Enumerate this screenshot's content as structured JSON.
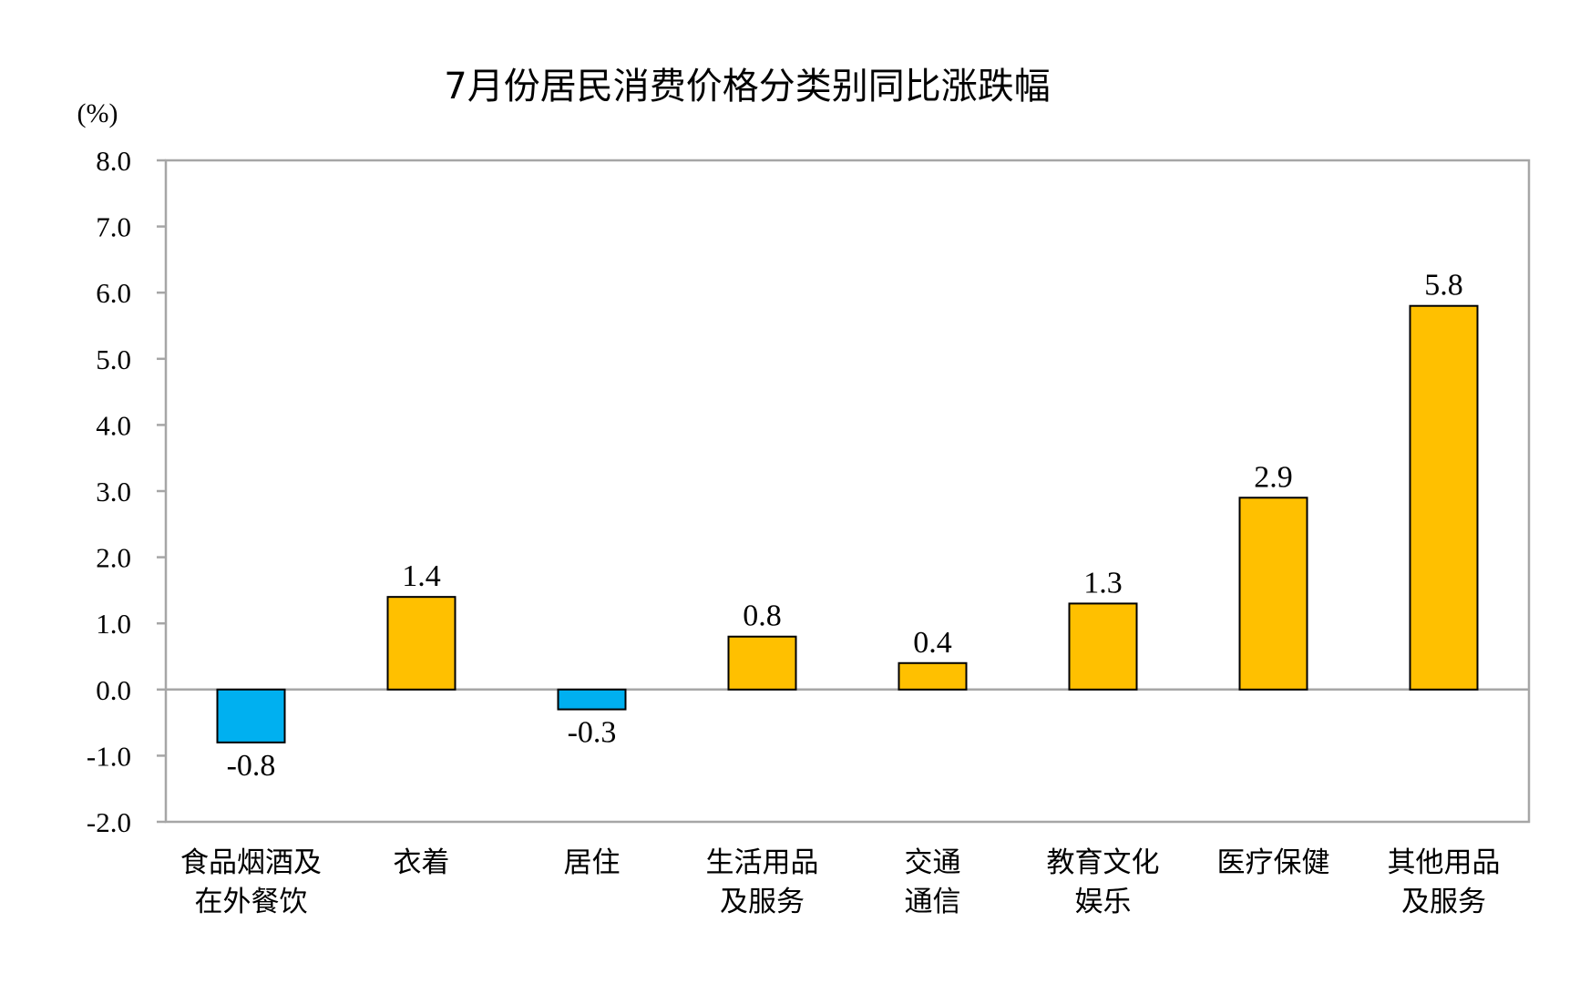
{
  "chart_data": {
    "type": "bar",
    "title": "7月份居民消费价格分类别同比涨跌幅",
    "ylabel": "(%)",
    "xlabel": "",
    "ylim": [
      -2.0,
      8.0
    ],
    "yticks": [
      "8.0",
      "7.0",
      "6.0",
      "5.0",
      "4.0",
      "3.0",
      "2.0",
      "1.0",
      "0.0",
      "-1.0",
      "-2.0"
    ],
    "categories": [
      [
        "食品烟酒及",
        "在外餐饮"
      ],
      [
        "衣着"
      ],
      [
        "居住"
      ],
      [
        "生活用品",
        "及服务"
      ],
      [
        "交通",
        "通信"
      ],
      [
        "教育文化",
        "娱乐"
      ],
      [
        "医疗保健"
      ],
      [
        "其他用品",
        "及服务"
      ]
    ],
    "values": [
      -0.8,
      1.4,
      -0.3,
      0.8,
      0.4,
      1.3,
      2.9,
      5.8
    ],
    "data_labels": [
      "-0.8",
      "1.4",
      "-0.3",
      "0.8",
      "0.4",
      "1.3",
      "2.9",
      "5.8"
    ],
    "grid": false,
    "legend": "none",
    "colors": {
      "positive": "#FFC000",
      "negative": "#00B0F0",
      "bar_stroke": "#000000",
      "frame": "#A6A6A6",
      "zero_line": "#A6A6A6"
    }
  }
}
